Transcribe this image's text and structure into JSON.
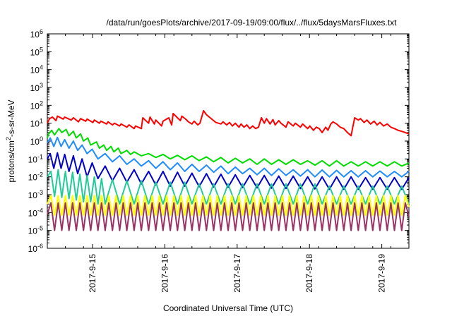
{
  "chart_data": {
    "type": "line",
    "title": "/data/run/goesPlots/archive/2017-09-19/09:00/flux/../flux/5daysMarsFluxes.txt",
    "xlabel": "Coordinated Universal Time (UTC)",
    "ylabel": "protons/cm²-s-sr-MeV",
    "ylabel_parts": {
      "pre": "protons/cm",
      "sup": "2",
      "post": "-s-sr-MeV"
    },
    "yscale": "log",
    "ylim": [
      1e-06,
      1000000.0
    ],
    "ytick_labels": [
      {
        "base": "10",
        "exp": "-6"
      },
      {
        "base": "10",
        "exp": "-5"
      },
      {
        "base": "10",
        "exp": "-4"
      },
      {
        "base": "10",
        "exp": "-3"
      },
      {
        "base": "10",
        "exp": "-2"
      },
      {
        "base": "10",
        "exp": "-1"
      },
      {
        "base": "10",
        "exp": "0"
      },
      {
        "base": "10",
        "exp": "1"
      },
      {
        "base": "10",
        "exp": "2"
      },
      {
        "base": "10",
        "exp": "3"
      },
      {
        "base": "10",
        "exp": "4"
      },
      {
        "base": "10",
        "exp": "5"
      },
      {
        "base": "10",
        "exp": "6"
      }
    ],
    "xlim": [
      "2017-09-14 09:00",
      "2017-09-19 09:00"
    ],
    "xticks": [
      "2017-9-15",
      "2017-9-16",
      "2017-9-17",
      "2017-9-18",
      "2017-9-19"
    ],
    "grid": false,
    "series": [
      {
        "color": "#ff0000",
        "x": [
          0.0,
          0.03,
          0.07,
          0.12,
          0.14,
          0.22,
          0.24,
          0.33,
          0.36,
          0.43,
          0.46,
          0.53,
          0.55,
          0.63,
          0.65,
          0.72,
          0.74,
          0.82,
          0.84,
          0.9,
          0.93,
          1.0,
          1.02,
          1.1,
          1.13,
          1.2,
          1.22,
          1.3,
          1.32,
          1.4,
          1.42,
          1.48,
          1.5,
          1.58,
          1.6,
          1.68,
          1.72,
          1.74,
          1.84,
          1.86,
          1.92,
          1.95,
          2.0,
          2.03,
          2.08,
          2.11,
          2.16,
          2.2,
          2.3,
          2.33,
          2.4,
          2.43,
          2.48,
          2.52,
          2.56,
          2.6,
          2.65,
          2.68,
          2.72,
          2.76,
          2.8,
          2.84,
          2.88,
          2.92,
          2.96,
          3.0,
          3.03,
          3.08,
          3.12,
          3.15,
          3.2,
          3.23,
          3.3,
          3.33,
          3.4,
          3.43,
          3.5,
          3.53,
          3.6,
          3.63,
          3.68,
          3.72,
          3.76,
          3.8,
          3.85,
          3.88,
          3.92,
          3.95,
          4.0,
          4.05,
          4.1,
          4.15,
          4.2,
          4.25,
          4.3,
          4.33,
          4.38,
          4.42,
          4.47,
          4.52,
          4.56,
          4.6,
          4.65,
          4.7,
          4.75,
          4.8,
          4.85,
          4.9,
          4.95,
          5.0
        ],
        "y": [
          10,
          18,
          22,
          14,
          25,
          17,
          22,
          15,
          20,
          12,
          18,
          13,
          17,
          11,
          15,
          10,
          13,
          9,
          12,
          8,
          10,
          7,
          9,
          6,
          8,
          5,
          7,
          5,
          20,
          10,
          22,
          9,
          15,
          7,
          13,
          20,
          8,
          35,
          14,
          25,
          16,
          12,
          9,
          13,
          8,
          10,
          50,
          30,
          14,
          11,
          9,
          12,
          8,
          11,
          7,
          10,
          6,
          9,
          6,
          8,
          5,
          7,
          5,
          6,
          20,
          10,
          18,
          9,
          16,
          8,
          14,
          10,
          6,
          12,
          7,
          10,
          6,
          9,
          5,
          7,
          4,
          6,
          5,
          3,
          6,
          4,
          9,
          12,
          9,
          6,
          5,
          3,
          2,
          20,
          15,
          18,
          11,
          15,
          9,
          13,
          8,
          11,
          7,
          9,
          6,
          5,
          4,
          3.5,
          3,
          2.5
        ]
      },
      {
        "color": "#00dd00",
        "x": [
          0.0,
          0.02,
          0.06,
          0.1,
          0.16,
          0.2,
          0.26,
          0.3,
          0.36,
          0.4,
          0.46,
          0.5,
          0.56,
          0.6,
          0.68,
          0.72,
          0.78,
          0.82,
          0.88,
          0.92,
          0.98,
          1.02,
          1.1,
          1.15,
          1.2,
          1.3,
          1.4,
          1.5,
          1.6,
          1.7,
          1.8,
          1.9,
          2.0,
          2.1,
          2.2,
          2.3,
          2.4,
          2.5,
          2.6,
          2.7,
          2.8,
          2.9,
          3.0,
          3.1,
          3.2,
          3.3,
          3.4,
          3.5,
          3.6,
          3.7,
          3.8,
          3.9,
          4.0,
          4.1,
          4.2,
          4.3,
          4.4,
          4.5,
          4.6,
          4.7,
          4.8,
          4.9,
          5.0
        ],
        "y": [
          1.5,
          2.5,
          4,
          2.2,
          5,
          3,
          4.5,
          2,
          3.5,
          1.5,
          2.5,
          1,
          1.5,
          0.6,
          0.9,
          0.4,
          0.6,
          0.3,
          0.5,
          0.25,
          0.4,
          0.2,
          0.3,
          0.18,
          0.25,
          0.15,
          0.2,
          0.12,
          0.18,
          0.1,
          0.16,
          0.09,
          0.15,
          0.08,
          0.13,
          0.07,
          0.12,
          0.06,
          0.11,
          0.06,
          0.1,
          0.05,
          0.1,
          0.05,
          0.09,
          0.05,
          0.09,
          0.05,
          0.08,
          0.045,
          0.08,
          0.04,
          0.08,
          0.04,
          0.07,
          0.04,
          0.07,
          0.04,
          0.07,
          0.04,
          0.07,
          0.04,
          0.06
        ]
      },
      {
        "color": "#1f8cff",
        "x": [
          0.0,
          0.04,
          0.09,
          0.14,
          0.19,
          0.24,
          0.3,
          0.36,
          0.42,
          0.48,
          0.55,
          0.62,
          0.7,
          0.8,
          0.9,
          1.0,
          1.1,
          1.2,
          1.3,
          1.4,
          1.5,
          1.6,
          1.7,
          1.8,
          1.9,
          2.0,
          2.1,
          2.2,
          2.3,
          2.4,
          2.5,
          2.6,
          2.7,
          2.8,
          2.9,
          3.0,
          3.1,
          3.2,
          3.3,
          3.4,
          3.5,
          3.6,
          3.7,
          3.8,
          3.9,
          4.0,
          4.1,
          4.2,
          4.3,
          4.4,
          4.5,
          4.6,
          4.7,
          4.8,
          4.9,
          5.0
        ],
        "y": [
          0.8,
          1.5,
          0.5,
          1.6,
          0.5,
          1.2,
          0.4,
          1,
          0.3,
          0.6,
          0.2,
          0.35,
          0.1,
          0.2,
          0.07,
          0.15,
          0.05,
          0.1,
          0.04,
          0.08,
          0.03,
          0.07,
          0.025,
          0.06,
          0.02,
          0.05,
          0.02,
          0.045,
          0.018,
          0.04,
          0.015,
          0.035,
          0.015,
          0.03,
          0.013,
          0.03,
          0.012,
          0.028,
          0.012,
          0.025,
          0.011,
          0.025,
          0.01,
          0.024,
          0.01,
          0.023,
          0.01,
          0.022,
          0.01,
          0.022,
          0.01,
          0.021,
          0.01,
          0.02,
          0.01,
          0.02
        ]
      },
      {
        "color": "#0000cc",
        "x": [
          0.0,
          0.04,
          0.09,
          0.14,
          0.19,
          0.24,
          0.3,
          0.36,
          0.42,
          0.48,
          0.55,
          0.62,
          0.7,
          0.8,
          0.9,
          1.0,
          1.1,
          1.2,
          1.3,
          1.4,
          1.5,
          1.6,
          1.7,
          1.8,
          1.9,
          2.0,
          2.1,
          2.2,
          2.3,
          2.4,
          2.5,
          2.6,
          2.7,
          2.8,
          2.9,
          3.0,
          3.1,
          3.2,
          3.3,
          3.4,
          3.5,
          3.6,
          3.7,
          3.8,
          3.9,
          4.0,
          4.1,
          4.2,
          4.3,
          4.4,
          4.5,
          4.6,
          4.7,
          4.8,
          4.9,
          5.0
        ],
        "y": [
          0.1,
          0.2,
          0.03,
          0.22,
          0.03,
          0.18,
          0.02,
          0.15,
          0.015,
          0.1,
          0.01,
          0.06,
          0.008,
          0.04,
          0.006,
          0.03,
          0.005,
          0.025,
          0.004,
          0.02,
          0.0035,
          0.02,
          0.003,
          0.018,
          0.003,
          0.016,
          0.0028,
          0.015,
          0.0027,
          0.014,
          0.0026,
          0.013,
          0.0025,
          0.012,
          0.0024,
          0.012,
          0.0023,
          0.011,
          0.0022,
          0.011,
          0.0022,
          0.01,
          0.0021,
          0.01,
          0.002,
          0.01,
          0.002,
          0.01,
          0.002,
          0.009,
          0.002,
          0.009,
          0.002,
          0.009,
          0.002,
          0.009
        ]
      },
      {
        "color": "#22cc99",
        "x": [
          0.0,
          0.05,
          0.1,
          0.15,
          0.2,
          0.25,
          0.3,
          0.35,
          0.4,
          0.45,
          0.5,
          0.55,
          0.6,
          0.65,
          0.7,
          0.75,
          0.8,
          0.9,
          1.0,
          1.1,
          1.2,
          1.3,
          1.4,
          1.5,
          1.6,
          1.7,
          1.8,
          1.9,
          2.0,
          2.1,
          2.2,
          2.3,
          2.4,
          2.5,
          2.6,
          2.7,
          2.8,
          2.9,
          3.0,
          3.1,
          3.2,
          3.3,
          3.4,
          3.5,
          3.6,
          3.7,
          3.8,
          3.9,
          4.0,
          4.1,
          4.2,
          4.3,
          4.4,
          4.5,
          4.6,
          4.7,
          4.8,
          4.9,
          5.0
        ],
        "y": [
          0.01,
          0.02,
          0.0008,
          0.025,
          0.0007,
          0.02,
          0.0006,
          0.018,
          0.0005,
          0.014,
          0.0004,
          0.012,
          0.0004,
          0.01,
          0.0003,
          0.008,
          0.0003,
          0.007,
          0.0003,
          0.006,
          0.0003,
          0.006,
          0.0003,
          0.005,
          0.0003,
          0.005,
          0.0003,
          0.005,
          0.0003,
          0.004,
          0.0003,
          0.004,
          0.0003,
          0.004,
          0.0003,
          0.004,
          0.0003,
          0.004,
          0.0003,
          0.004,
          0.0003,
          0.004,
          0.0003,
          0.004,
          0.0003,
          0.004,
          0.0003,
          0.003,
          0.0003,
          0.003,
          0.0003,
          0.003,
          0.0003,
          0.003,
          0.0003,
          0.003,
          0.0003,
          0.003,
          0.0003
        ]
      },
      {
        "color": "#ffff00",
        "x": [
          0.0,
          0.05,
          0.1,
          0.15,
          0.2,
          0.25,
          0.3,
          0.35,
          0.4,
          0.45,
          0.5,
          0.55,
          0.6,
          0.65,
          0.7,
          0.75,
          0.8,
          0.85,
          0.9,
          0.95,
          1.0,
          1.05,
          1.1,
          1.15,
          1.2,
          1.25,
          1.3,
          1.35,
          1.4,
          1.45,
          1.5,
          1.55,
          1.6,
          1.65,
          1.7,
          1.75,
          1.8,
          1.85,
          1.9,
          1.95,
          2.0,
          2.05,
          2.1,
          2.15,
          2.2,
          2.25,
          2.3,
          2.35,
          2.4,
          2.45,
          2.5,
          2.55,
          2.6,
          2.65,
          2.7,
          2.75,
          2.8,
          2.85,
          2.9,
          2.95,
          3.0,
          3.05,
          3.1,
          3.15,
          3.2,
          3.25,
          3.3,
          3.35,
          3.4,
          3.45,
          3.5,
          3.55,
          3.6,
          3.65,
          3.7,
          3.75,
          3.8,
          3.85,
          3.9,
          3.95,
          4.0,
          4.05,
          4.1,
          4.15,
          4.2,
          4.25,
          4.3,
          4.35,
          4.4,
          4.45,
          4.5,
          4.55,
          4.6,
          4.65,
          4.7,
          4.75,
          4.8,
          4.85,
          4.9,
          4.95,
          5.0
        ],
        "y": [
          0.0003,
          0.0009,
          7e-05,
          0.0009,
          7e-05,
          0.0009,
          7e-05,
          0.0009,
          7e-05,
          0.0009,
          7e-05,
          0.0009,
          7e-05,
          0.0009,
          7e-05,
          0.0009,
          7e-05,
          0.0009,
          7e-05,
          0.0009,
          7e-05,
          0.0009,
          7e-05,
          0.0009,
          7e-05,
          0.0009,
          7e-05,
          0.0009,
          7e-05,
          0.0009,
          7e-05,
          0.0009,
          7e-05,
          0.0009,
          7e-05,
          0.0009,
          7e-05,
          0.0009,
          7e-05,
          0.0009,
          7e-05,
          0.0009,
          7e-05,
          0.0009,
          7e-05,
          0.0009,
          7e-05,
          0.0009,
          7e-05,
          0.0009,
          7e-05,
          0.0009,
          7e-05,
          0.0009,
          7e-05,
          0.0009,
          7e-05,
          0.0009,
          7e-05,
          0.0009,
          7e-05,
          0.0009,
          7e-05,
          0.0009,
          7e-05,
          0.0009,
          7e-05,
          0.0009,
          7e-05,
          0.0009,
          7e-05,
          0.0009,
          7e-05,
          0.0009,
          7e-05,
          0.0009,
          7e-05,
          0.0009,
          7e-05,
          0.0009,
          7e-05,
          0.0009,
          7e-05,
          0.0009,
          7e-05,
          0.0009,
          7e-05,
          0.0009,
          7e-05,
          0.0009,
          7e-05,
          0.0009,
          7e-05,
          0.0009,
          7e-05,
          0.0009,
          7e-05,
          0.0009,
          7e-05,
          0.0009,
          0.0002
        ]
      },
      {
        "color": "#993366",
        "x": [
          0.0,
          0.05,
          0.1,
          0.15,
          0.2,
          0.25,
          0.3,
          0.35,
          0.4,
          0.45,
          0.5,
          0.55,
          0.6,
          0.65,
          0.7,
          0.75,
          0.8,
          0.85,
          0.9,
          0.95,
          1.0,
          1.05,
          1.1,
          1.15,
          1.2,
          1.25,
          1.3,
          1.35,
          1.4,
          1.45,
          1.5,
          1.55,
          1.6,
          1.65,
          1.7,
          1.75,
          1.8,
          1.85,
          1.9,
          1.95,
          2.0,
          2.05,
          2.1,
          2.15,
          2.2,
          2.25,
          2.3,
          2.35,
          2.4,
          2.45,
          2.5,
          2.55,
          2.6,
          2.65,
          2.7,
          2.75,
          2.8,
          2.85,
          2.9,
          2.95,
          3.0,
          3.05,
          3.1,
          3.15,
          3.2,
          3.25,
          3.3,
          3.35,
          3.4,
          3.45,
          3.5,
          3.55,
          3.6,
          3.65,
          3.7,
          3.75,
          3.8,
          3.85,
          3.9,
          3.95,
          4.0,
          4.05,
          4.1,
          4.15,
          4.2,
          4.25,
          4.3,
          4.35,
          4.4,
          4.45,
          4.5,
          4.55,
          4.6,
          4.65,
          4.7,
          4.75,
          4.8,
          4.85,
          4.9,
          4.95,
          5.0
        ],
        "y": [
          8e-05,
          0.00035,
          1e-05,
          0.00035,
          1e-05,
          0.00035,
          1e-05,
          0.00035,
          1e-05,
          0.00035,
          1e-05,
          0.00035,
          1e-05,
          0.00035,
          1e-05,
          0.00035,
          1e-05,
          0.00035,
          1e-05,
          0.00035,
          1e-05,
          0.00035,
          1e-05,
          0.00035,
          1e-05,
          0.00035,
          1e-05,
          0.00035,
          1e-05,
          0.00035,
          1e-05,
          0.00035,
          1e-05,
          0.00035,
          1e-05,
          0.00035,
          1e-05,
          0.00035,
          1e-05,
          0.00035,
          1e-05,
          0.00035,
          1e-05,
          0.00035,
          1e-05,
          0.00035,
          1e-05,
          0.00035,
          1e-05,
          0.00035,
          1e-05,
          0.00035,
          1e-05,
          0.00035,
          1e-05,
          0.00035,
          1e-05,
          0.00035,
          1e-05,
          0.00035,
          1e-05,
          0.00035,
          1e-05,
          0.00035,
          1e-05,
          0.00035,
          1e-05,
          0.00035,
          1e-05,
          0.00035,
          1e-05,
          0.00035,
          1e-05,
          0.00035,
          1e-05,
          0.00035,
          1e-05,
          0.00035,
          1e-05,
          0.00035,
          1e-05,
          0.00035,
          1e-05,
          0.00035,
          1e-05,
          0.00035,
          1e-05,
          0.00035,
          1e-05,
          0.00035,
          1e-05,
          0.00035,
          1e-05,
          0.00035,
          1e-05,
          0.00035,
          1e-05,
          0.00035,
          1e-05,
          0.00035,
          6e-05
        ]
      }
    ]
  }
}
